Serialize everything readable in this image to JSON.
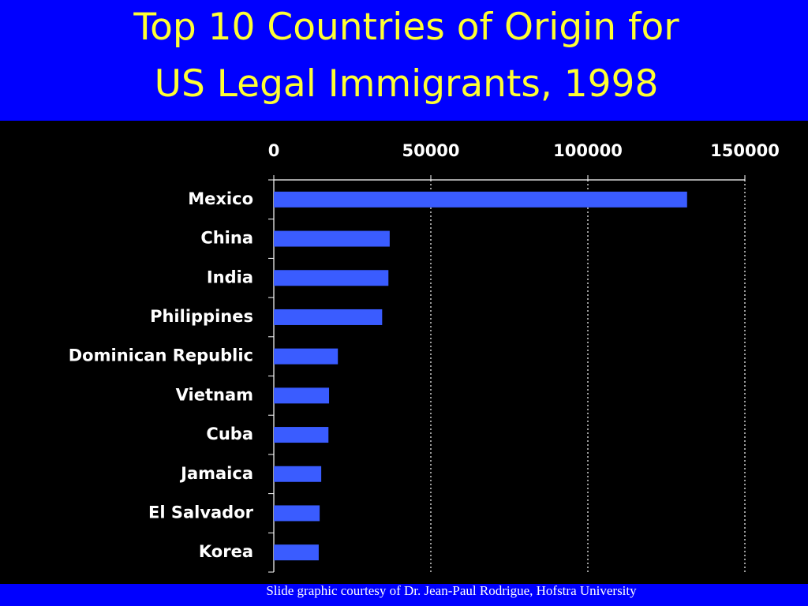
{
  "chart_data": {
    "type": "hbar",
    "title": [
      "Top 10 Countries of Origin for",
      "US Legal Immigrants, 1998"
    ],
    "categories": [
      "Mexico",
      "China",
      "India",
      "Philippines",
      "Dominican Republic",
      "Vietnam",
      "Cuba",
      "Jamaica",
      "El Salvador",
      "Korea"
    ],
    "values": [
      131600,
      36900,
      36500,
      34500,
      20400,
      17600,
      17400,
      15100,
      14600,
      14300
    ],
    "color": "#3a5cff",
    "xlim": [
      0,
      150000
    ],
    "xticks": [
      0,
      50000,
      100000,
      150000
    ],
    "grid": true,
    "source": "Slide graphic courtesy of Dr. Jean-Paul Rodrigue, Hofstra University"
  }
}
